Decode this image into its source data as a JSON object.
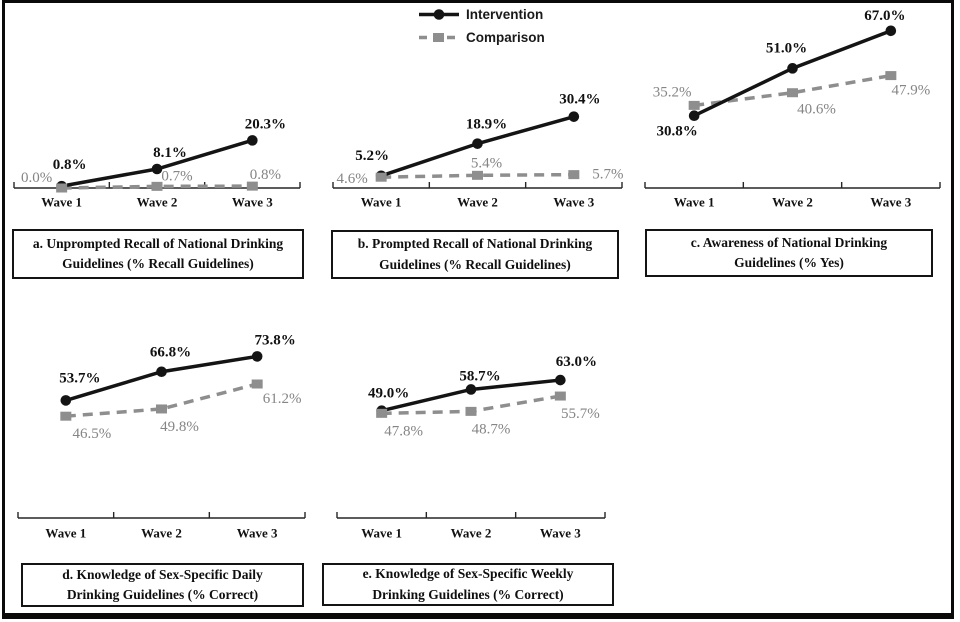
{
  "figure": {
    "legend": {
      "position": "top-center",
      "items": [
        {
          "label": "Intervention",
          "marker": "circle",
          "line": "solid"
        },
        {
          "label": "Comparison",
          "marker": "square",
          "line": "dashed"
        }
      ]
    }
  },
  "colors": {
    "intervention": "#141414",
    "comparison": "#8e8e8e",
    "comparison_label": "#858585",
    "axis": "#262626"
  },
  "chart_data": [
    {
      "id": "a",
      "type": "line",
      "title": "a. Unprompted Recall of National Drinking Guidelines (% Recall Guidelines)",
      "title_lines": [
        "a. Unprompted Recall of National Drinking",
        "Guidelines (% Recall Guidelines)"
      ],
      "categories": [
        "Wave 1",
        "Wave 2",
        "Wave 3"
      ],
      "ylim": [
        0,
        75
      ],
      "grid": false,
      "series": [
        {
          "name": "Intervention",
          "marker": "circle",
          "values": [
            0.8,
            8.1,
            20.3
          ],
          "labels": [
            "0.8%",
            "8.1%",
            "20.3%"
          ],
          "label_offsets": [
            [
              8,
              -21
            ],
            [
              13,
              -16
            ],
            [
              13,
              -16
            ]
          ]
        },
        {
          "name": "Comparison",
          "marker": "square",
          "values": [
            0.0,
            0.7,
            0.8
          ],
          "labels": [
            "0.0%",
            "0.7%",
            "0.8%"
          ],
          "label_offsets": [
            [
              -25,
              -10
            ],
            [
              20,
              -10
            ],
            [
              13,
              -11
            ]
          ]
        }
      ],
      "layout": {
        "left": 14,
        "right": 300,
        "axis_y": 188,
        "plot_top": 12,
        "cat_label_y": 202,
        "title_box": [
          12,
          229,
          292,
          50
        ]
      }
    },
    {
      "id": "b",
      "type": "line",
      "title": "b. Prompted Recall of National Drinking Guidelines (% Recall Guidelines)",
      "title_lines": [
        "b. Prompted Recall of National Drinking",
        "Guidelines (% Recall Guidelines)"
      ],
      "categories": [
        "Wave 1",
        "Wave 2",
        "Wave 3"
      ],
      "ylim": [
        0,
        75
      ],
      "grid": false,
      "series": [
        {
          "name": "Intervention",
          "marker": "circle",
          "values": [
            5.2,
            18.9,
            30.4
          ],
          "labels": [
            "5.2%",
            "18.9%",
            "30.4%"
          ],
          "label_offsets": [
            [
              -9,
              -20
            ],
            [
              9,
              -19
            ],
            [
              6,
              -17
            ]
          ]
        },
        {
          "name": "Comparison",
          "marker": "square",
          "values": [
            4.6,
            5.4,
            5.7
          ],
          "labels": [
            "4.6%",
            "5.4%",
            "5.7%"
          ],
          "label_offsets": [
            [
              -29,
              2
            ],
            [
              9,
              -12
            ],
            [
              34,
              0
            ]
          ]
        }
      ],
      "layout": {
        "left": 333,
        "right": 622,
        "axis_y": 188,
        "plot_top": 12,
        "cat_label_y": 202,
        "title_box": [
          331,
          230,
          288,
          49
        ]
      }
    },
    {
      "id": "c",
      "type": "line",
      "title": "c. Awareness of National Drinking Guidelines (% Yes)",
      "title_lines": [
        "c. Awareness of National Drinking",
        "Guidelines (% Yes)"
      ],
      "categories": [
        "Wave 1",
        "Wave 2",
        "Wave 3"
      ],
      "ylim": [
        0,
        75
      ],
      "grid": false,
      "series": [
        {
          "name": "Intervention",
          "marker": "circle",
          "values": [
            30.8,
            51.0,
            67.0
          ],
          "labels": [
            "30.8%",
            "51.0%",
            "67.0%"
          ],
          "label_offsets": [
            [
              -17,
              16
            ],
            [
              -6,
              -20
            ],
            [
              -6,
              -15
            ]
          ]
        },
        {
          "name": "Comparison",
          "marker": "square",
          "values": [
            35.2,
            40.6,
            47.9
          ],
          "labels": [
            "35.2%",
            "40.6%",
            "47.9%"
          ],
          "label_offsets": [
            [
              -22,
              -13
            ],
            [
              24,
              17
            ],
            [
              20,
              15
            ]
          ]
        }
      ],
      "layout": {
        "left": 645,
        "right": 940,
        "axis_y": 188,
        "plot_top": 12,
        "cat_label_y": 202,
        "title_box": [
          645,
          229,
          288,
          48
        ]
      }
    },
    {
      "id": "d",
      "type": "line",
      "title": "d. Knowledge of Sex-Specific Daily Drinking Guidelines (% Correct)",
      "title_lines": [
        "d. Knowledge of Sex-Specific Daily",
        "Drinking Guidelines (% Correct)"
      ],
      "categories": [
        "Wave 1",
        "Wave 2",
        "Wave 3"
      ],
      "ylim": [
        0,
        95
      ],
      "grid": false,
      "series": [
        {
          "name": "Intervention",
          "marker": "circle",
          "values": [
            53.7,
            66.8,
            73.8
          ],
          "labels": [
            "53.7%",
            "66.8%",
            "73.8%"
          ],
          "label_offsets": [
            [
              14,
              -22
            ],
            [
              9,
              -19
            ],
            [
              18,
              -16
            ]
          ]
        },
        {
          "name": "Comparison",
          "marker": "square",
          "values": [
            46.5,
            49.8,
            61.2
          ],
          "labels": [
            "46.5%",
            "49.8%",
            "61.2%"
          ],
          "label_offsets": [
            [
              26,
              18
            ],
            [
              18,
              18
            ],
            [
              25,
              15
            ]
          ]
        }
      ],
      "layout": {
        "left": 18,
        "right": 305,
        "axis_y": 518,
        "plot_top": 310,
        "cat_label_y": 533,
        "title_box": [
          21,
          563,
          283,
          44
        ]
      }
    },
    {
      "id": "e",
      "type": "line",
      "title": "e. Knowledge of Sex-Specific Weekly Drinking Guidelines (% Correct)",
      "title_lines": [
        "e. Knowledge of Sex-Specific Weekly",
        "Drinking Guidelines (% Correct)"
      ],
      "categories": [
        "Wave 1",
        "Wave 2",
        "Wave 3"
      ],
      "ylim": [
        0,
        95
      ],
      "grid": false,
      "series": [
        {
          "name": "Intervention",
          "marker": "circle",
          "values": [
            49.0,
            58.7,
            63.0
          ],
          "labels": [
            "49.0%",
            "58.7%",
            "63.0%"
          ],
          "label_offsets": [
            [
              7,
              -17
            ],
            [
              9,
              -13
            ],
            [
              16,
              -18
            ]
          ]
        },
        {
          "name": "Comparison",
          "marker": "square",
          "values": [
            47.8,
            48.7,
            55.7
          ],
          "labels": [
            "47.8%",
            "48.7%",
            "55.7%"
          ],
          "label_offsets": [
            [
              22,
              18
            ],
            [
              20,
              18
            ],
            [
              20,
              18
            ]
          ]
        }
      ],
      "layout": {
        "left": 337,
        "right": 605,
        "axis_y": 518,
        "plot_top": 310,
        "cat_label_y": 533,
        "title_box": [
          322,
          563,
          292,
          43
        ]
      }
    }
  ]
}
